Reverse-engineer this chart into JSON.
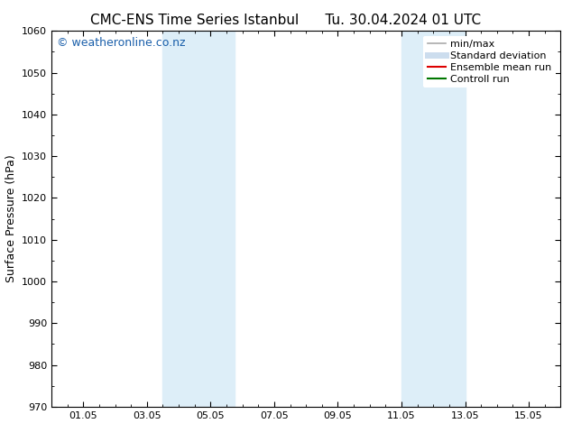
{
  "title_left": "CMC-ENS Time Series Istanbul",
  "title_right": "Tu. 30.04.2024 01 UTC",
  "ylabel": "Surface Pressure (hPa)",
  "ylim": [
    970,
    1060
  ],
  "yticks": [
    970,
    980,
    990,
    1000,
    1010,
    1020,
    1030,
    1040,
    1050,
    1060
  ],
  "xlim": [
    0,
    16
  ],
  "xtick_labels": [
    "01.05",
    "03.05",
    "05.05",
    "07.05",
    "09.05",
    "11.05",
    "13.05",
    "15.05"
  ],
  "xtick_positions": [
    1,
    3,
    5,
    7,
    9,
    11,
    13,
    15
  ],
  "shaded_bands": [
    {
      "x_start": 3.5,
      "x_end": 5.75
    },
    {
      "x_start": 11.0,
      "x_end": 13.0
    }
  ],
  "shaded_color": "#ddeef8",
  "background_color": "#ffffff",
  "watermark_text": "© weatheronline.co.nz",
  "watermark_color": "#1a5faa",
  "legend_entries": [
    {
      "label": "min/max",
      "color": "#aaaaaa",
      "lw": 1.2,
      "ls": "-"
    },
    {
      "label": "Standard deviation",
      "color": "#ccddee",
      "lw": 5,
      "ls": "-"
    },
    {
      "label": "Ensemble mean run",
      "color": "#dd0000",
      "lw": 1.5,
      "ls": "-"
    },
    {
      "label": "Controll run",
      "color": "#007700",
      "lw": 1.5,
      "ls": "-"
    }
  ],
  "title_fontsize": 11,
  "axis_label_fontsize": 9,
  "tick_fontsize": 8,
  "watermark_fontsize": 9,
  "legend_fontsize": 8
}
